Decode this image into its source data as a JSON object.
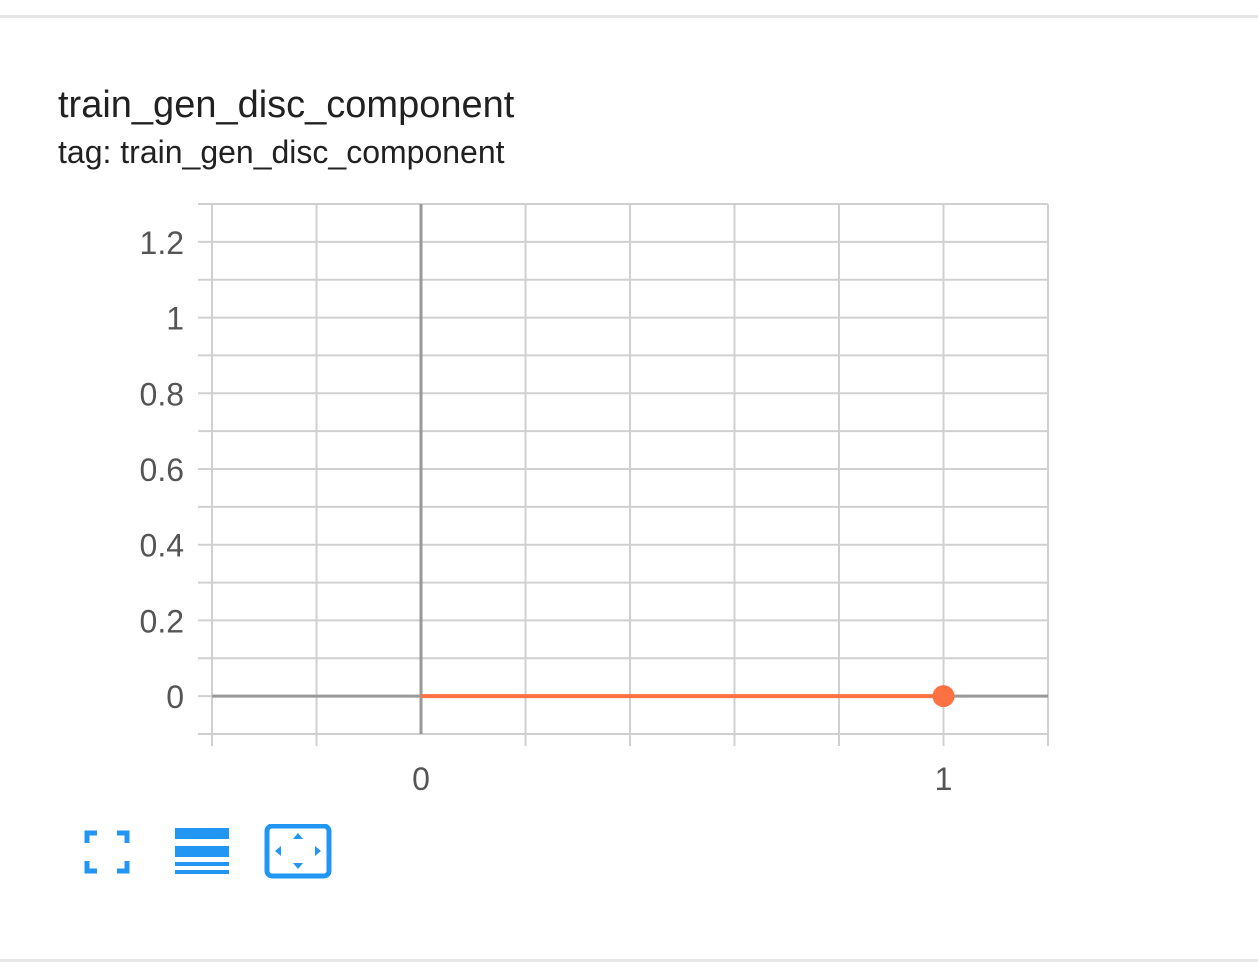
{
  "card": {
    "title": "train_gen_disc_component",
    "subtitle": "tag: train_gen_disc_component"
  },
  "colors": {
    "series": "#ff7043",
    "grid": "#d0d0d0",
    "axis": "#999999",
    "tick_text": "#555555",
    "tool": "#2196f3"
  },
  "toolbar": {
    "icons": [
      "fullscreen-icon",
      "toggle-log-scale-icon",
      "fit-domain-icon"
    ]
  },
  "chart_data": {
    "type": "line",
    "title": "train_gen_disc_component",
    "x": [
      0,
      1
    ],
    "series": [
      {
        "values": [
          0,
          0
        ]
      }
    ],
    "xlim": [
      -0.4,
      1.2
    ],
    "ylim": [
      -0.1,
      1.3
    ],
    "x_ticks": [
      0,
      1
    ],
    "x_tick_labels": [
      "0",
      "1"
    ],
    "y_ticks": [
      0,
      0.2,
      0.4,
      0.6,
      0.8,
      1,
      1.2
    ],
    "y_tick_labels": [
      "0",
      "0.2",
      "0.4",
      "0.6",
      "0.8",
      "1",
      "1.2"
    ],
    "grid": true,
    "legend": "none"
  }
}
